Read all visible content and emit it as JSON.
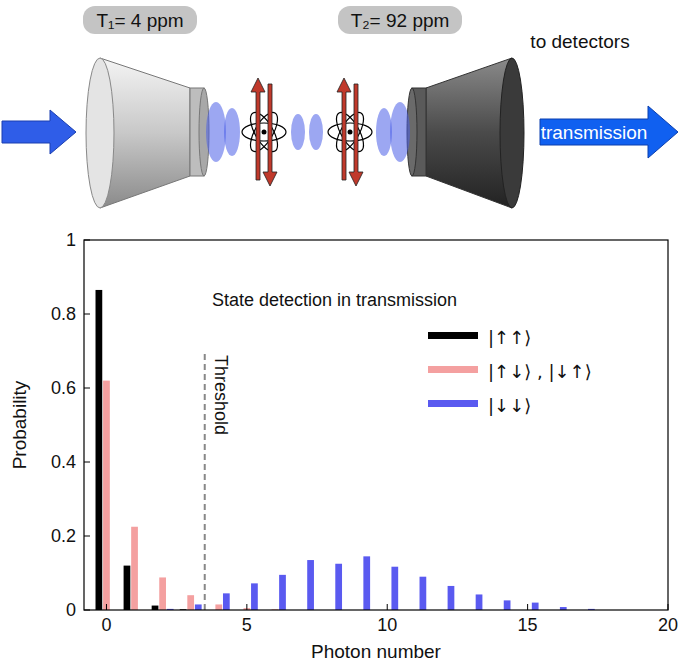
{
  "diagram": {
    "mirror_labels": [
      "T₁= 4 ppm",
      "T₂= 92 ppm"
    ],
    "output_label": "to detectors",
    "arrow_label": "transmission"
  },
  "chart_data": {
    "type": "bar",
    "annotation": "State detection in transmission",
    "x_label": "Photon number",
    "y_label": "Probability",
    "x": [
      0,
      1,
      2,
      3,
      4,
      5,
      6,
      7,
      8,
      9,
      10,
      11,
      12,
      13,
      14,
      15,
      16,
      17,
      18,
      19,
      20
    ],
    "series": [
      {
        "name": "|↑↑⟩",
        "color": "#000000",
        "values": [
          0.865,
          0.12,
          0.012,
          0.002,
          0,
          0,
          0,
          0,
          0,
          0,
          0,
          0,
          0,
          0,
          0,
          0,
          0,
          0,
          0,
          0,
          0
        ]
      },
      {
        "name": "|↑↓⟩ , |↓↑⟩",
        "color": "#f4a0a0",
        "values": [
          0.62,
          0.225,
          0.088,
          0.04,
          0.015,
          0.005,
          0.002,
          0,
          0,
          0,
          0,
          0,
          0,
          0,
          0,
          0,
          0,
          0,
          0,
          0,
          0
        ]
      },
      {
        "name": "|↓↓⟩",
        "color": "#5a5af0",
        "values": [
          0,
          0,
          0.003,
          0.015,
          0.045,
          0.072,
          0.095,
          0.135,
          0.125,
          0.145,
          0.117,
          0.09,
          0.065,
          0.042,
          0.026,
          0.02,
          0.008,
          0.003,
          0,
          0,
          0
        ]
      }
    ],
    "threshold": {
      "x": 3.5,
      "y_extent": [
        0,
        0.7
      ],
      "label": "Threshold"
    },
    "xlim": [
      -0.8,
      20
    ],
    "ylim": [
      0,
      1
    ],
    "xticks": [
      0,
      5,
      10,
      15,
      20
    ],
    "yticks": [
      0,
      0.2,
      0.4,
      0.6,
      0.8,
      1
    ],
    "grid": false,
    "legend": "upper right"
  }
}
